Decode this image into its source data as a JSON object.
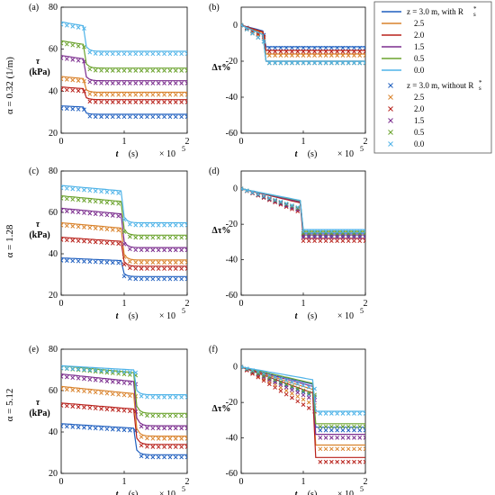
{
  "colors": {
    "z3.0": "#1f5fbf",
    "z2.5": "#d9822b",
    "z2.0": "#b8201a",
    "z1.5": "#7b2d8e",
    "z0.5": "#6ba32e",
    "z0.0": "#4fb3e8"
  },
  "row_labels": [
    "α = 0.32 (1/m)",
    "α = 1.28",
    "α = 5.12"
  ],
  "legend": {
    "with_header": "z = 3.0 m, with R",
    "with_super": "s",
    "with_asterisk": "*",
    "without_header": "z = 3.0 m, without R",
    "without_super": "s",
    "without_asterisk": "*",
    "entries": [
      "2.5",
      "2.0",
      "1.5",
      "0.5",
      "0.0"
    ]
  },
  "axes": {
    "x_label_t": "t",
    "x_label_unit": "(s)",
    "x_exponent": "× 10",
    "x_exponent_power": "5",
    "y_label_tau": "τ",
    "y_label_tau_unit": "(kPa)",
    "y_label_dtau": "Δτ%"
  },
  "chart_data": [
    {
      "panel": "(a)",
      "type": "line",
      "x_range": [
        0,
        2
      ],
      "x_ticks": [
        0,
        1,
        2
      ],
      "y_range": [
        20,
        80
      ],
      "y_ticks": [
        20,
        40,
        60,
        80
      ],
      "ylabel": "τ (kPa)",
      "series": [
        {
          "z": "3.0",
          "initial": 33,
          "final": 29,
          "t_drop": 0.4,
          "sim_offset": 0
        },
        {
          "z": "2.5",
          "initial": 47,
          "final": 39.5,
          "t_drop": 0.4,
          "sim_offset": 1
        },
        {
          "z": "2.0",
          "initial": 42,
          "final": 36,
          "t_drop": 0.4,
          "sim_offset": 0
        },
        {
          "z": "1.5",
          "initial": 57,
          "final": 45,
          "t_drop": 0.4,
          "sim_offset": 1
        },
        {
          "z": "0.5",
          "initial": 64,
          "final": 51,
          "t_drop": 0.4,
          "sim_offset": 1
        },
        {
          "z": "0.0",
          "initial": 73,
          "final": 59,
          "t_drop": 0.4,
          "sim_offset": -2
        }
      ]
    },
    {
      "panel": "(b)",
      "type": "line",
      "x_range": [
        0,
        2
      ],
      "x_ticks": [
        0,
        1,
        2
      ],
      "y_range": [
        -60,
        10
      ],
      "y_ticks": [
        -60,
        -40,
        -20,
        0
      ],
      "ylabel": "Δτ%",
      "series": [
        {
          "z": "3.0",
          "initial": 0,
          "final": -12
        },
        {
          "z": "2.5",
          "initial": 0,
          "final": -16
        },
        {
          "z": "2.0",
          "initial": 0,
          "final": -14
        },
        {
          "z": "1.5",
          "initial": 0,
          "final": -20
        },
        {
          "z": "0.5",
          "initial": 0,
          "final": -20
        },
        {
          "z": "0.0",
          "initial": 0,
          "final": -20
        }
      ]
    },
    {
      "panel": "(c)",
      "type": "line",
      "x_range": [
        0,
        2
      ],
      "x_ticks": [
        0,
        1,
        2
      ],
      "y_range": [
        20,
        80
      ],
      "y_ticks": [
        20,
        40,
        60,
        80
      ],
      "ylabel": "τ (kPa)",
      "series": [
        {
          "z": "3.0",
          "initial": 38,
          "final": 29,
          "t_drop": 1.0
        },
        {
          "z": "2.5",
          "initial": 55,
          "final": 37,
          "t_drop": 1.0
        },
        {
          "z": "2.0",
          "initial": 48,
          "final": 34,
          "t_drop": 1.0
        },
        {
          "z": "1.5",
          "initial": 62,
          "final": 43,
          "t_drop": 1.0
        },
        {
          "z": "0.5",
          "initial": 68,
          "final": 49,
          "t_drop": 1.0
        },
        {
          "z": "0.0",
          "initial": 73,
          "final": 55,
          "t_drop": 1.0
        }
      ]
    },
    {
      "panel": "(d)",
      "type": "line",
      "x_range": [
        0,
        2
      ],
      "x_ticks": [
        0,
        1,
        2
      ],
      "y_range": [
        -60,
        10
      ],
      "y_ticks": [
        -60,
        -40,
        -20,
        0
      ],
      "ylabel": "Δτ%",
      "series": [
        {
          "z": "3.0",
          "initial": 0,
          "final": -25
        },
        {
          "z": "2.5",
          "initial": 0,
          "final": -24
        },
        {
          "z": "2.0",
          "initial": 0,
          "final": -28
        },
        {
          "z": "1.5",
          "initial": 0,
          "final": -26
        },
        {
          "z": "0.5",
          "initial": 0,
          "final": -24
        },
        {
          "z": "0.0",
          "initial": 0,
          "final": -23
        }
      ]
    },
    {
      "panel": "(e)",
      "type": "line",
      "x_range": [
        0,
        2
      ],
      "x_ticks": [
        0,
        1,
        2
      ],
      "y_range": [
        20,
        80
      ],
      "y_ticks": [
        20,
        40,
        60,
        80
      ],
      "ylabel": "τ (kPa)",
      "series": [
        {
          "z": "3.0",
          "initial": 44,
          "final": 29,
          "t_drop": 1.2
        },
        {
          "z": "2.5",
          "initial": 62,
          "final": 38,
          "t_drop": 1.2
        },
        {
          "z": "2.0",
          "initial": 54,
          "final": 34,
          "t_drop": 1.2
        },
        {
          "z": "1.5",
          "initial": 68,
          "final": 43,
          "t_drop": 1.2
        },
        {
          "z": "0.5",
          "initial": 72,
          "final": 49,
          "t_drop": 1.2
        },
        {
          "z": "0.0",
          "initial": 72,
          "final": 58,
          "t_drop": 1.2
        }
      ]
    },
    {
      "panel": "(f)",
      "type": "line",
      "x_range": [
        0,
        2
      ],
      "x_ticks": [
        0,
        1,
        2
      ],
      "y_range": [
        -60,
        10
      ],
      "y_ticks": [
        -60,
        -40,
        -20,
        0
      ],
      "ylabel": "Δτ%",
      "series": [
        {
          "z": "3.0",
          "initial": 0,
          "final": -34
        },
        {
          "z": "2.5",
          "initial": 0,
          "final": -44
        },
        {
          "z": "2.0",
          "initial": 0,
          "final": -51
        },
        {
          "z": "1.5",
          "initial": 0,
          "final": -38
        },
        {
          "z": "0.5",
          "initial": 0,
          "final": -32
        },
        {
          "z": "0.0",
          "initial": 0,
          "final": -25
        }
      ]
    }
  ]
}
